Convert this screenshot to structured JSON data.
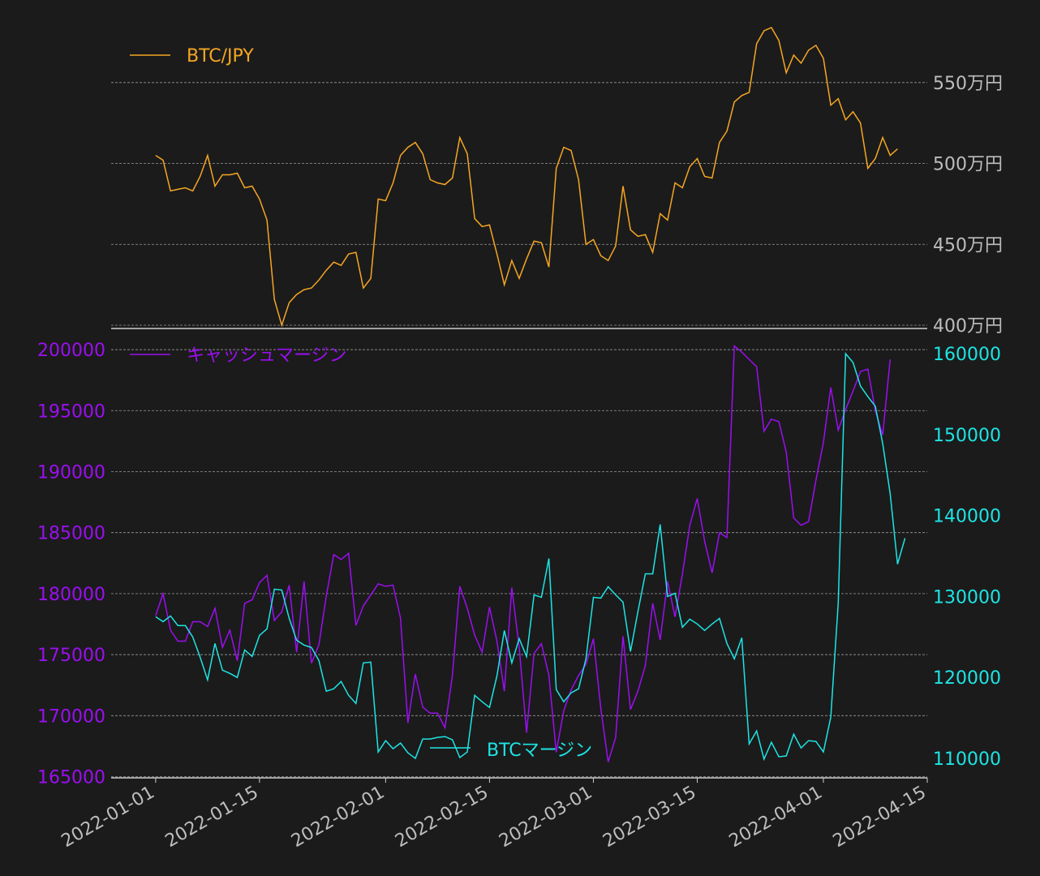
{
  "colors": {
    "background": "#1b1b1b",
    "btc_jpy": "#f5a623",
    "cash_margin": "#9b0ff0",
    "btc_margin": "#1ee4e4",
    "tick_gray": "#bdbdbd"
  },
  "chart_data": [
    {
      "type": "line",
      "panel": "top",
      "x_start": "2022-01-01",
      "ylim": [
        3980000,
        5900000
      ],
      "yticks": [
        4000000,
        4500000,
        5000000,
        5500000
      ],
      "ytick_labels": [
        "400万円",
        "450万円",
        "500万円",
        "550万円"
      ],
      "grid": true,
      "legend_position": "top-left",
      "series": [
        {
          "name": "BTC/JPY",
          "color": "#f5a623",
          "values": [
            5050000,
            5020000,
            4830000,
            4840000,
            4850000,
            4830000,
            4920000,
            5050000,
            4860000,
            4930000,
            4930000,
            4940000,
            4850000,
            4860000,
            4780000,
            4650000,
            4160000,
            4000000,
            4140000,
            4190000,
            4220000,
            4230000,
            4280000,
            4340000,
            4390000,
            4370000,
            4440000,
            4450000,
            4230000,
            4290000,
            4780000,
            4770000,
            4880000,
            5050000,
            5100000,
            5130000,
            5060000,
            4900000,
            4880000,
            4870000,
            4910000,
            5160000,
            5060000,
            4660000,
            4610000,
            4620000,
            4440000,
            4250000,
            4400000,
            4290000,
            4410000,
            4520000,
            4510000,
            4360000,
            4970000,
            5100000,
            5080000,
            4900000,
            4500000,
            4530000,
            4430000,
            4400000,
            4490000,
            4860000,
            4590000,
            4550000,
            4560000,
            4450000,
            4690000,
            4650000,
            4880000,
            4850000,
            4980000,
            5030000,
            4920000,
            4910000,
            5130000,
            5200000,
            5380000,
            5420000,
            5440000,
            5740000,
            5820000,
            5840000,
            5760000,
            5560000,
            5670000,
            5620000,
            5700000,
            5730000,
            5650000,
            5360000,
            5400000,
            5270000,
            5320000,
            5250000,
            4970000,
            5030000,
            5160000,
            5050000,
            5090000
          ]
        }
      ]
    },
    {
      "type": "line",
      "panel": "bottom",
      "x_start": "2022-01-01",
      "ylim_left": [
        164900,
        201200
      ],
      "ylim_right": [
        107600,
        162300
      ],
      "yticks_left": [
        165000,
        170000,
        175000,
        180000,
        185000,
        190000,
        195000,
        200000
      ],
      "ytick_labels_left": [
        "165000",
        "170000",
        "175000",
        "180000",
        "185000",
        "190000",
        "195000",
        "200000"
      ],
      "yticks_right": [
        110000,
        120000,
        130000,
        140000,
        150000,
        160000
      ],
      "ytick_labels_right": [
        "110000",
        "120000",
        "130000",
        "140000",
        "150000",
        "160000"
      ],
      "xticks": [
        "2022-01-01",
        "2022-01-15",
        "2022-02-01",
        "2022-02-15",
        "2022-03-01",
        "2022-03-15",
        "2022-04-01",
        "2022-04-15"
      ],
      "xtick_labels": [
        "2022-01-01",
        "2022-01-15",
        "2022-02-01",
        "2022-02-15",
        "2022-03-01",
        "2022-03-15",
        "2022-04-01",
        "2022-04-15"
      ],
      "grid": true,
      "series": [
        {
          "name": "キャッシュマージン",
          "axis": "left",
          "color": "#9b0ff0",
          "legend_position": "top-left",
          "values": [
            178200,
            180000,
            177000,
            176100,
            176100,
            177700,
            177700,
            177300,
            178800,
            175600,
            177000,
            174500,
            179200,
            179500,
            180900,
            181500,
            177800,
            178500,
            180700,
            175200,
            181000,
            174300,
            175800,
            179800,
            183200,
            182800,
            183300,
            177400,
            179000,
            179900,
            180800,
            180600,
            180700,
            178000,
            169400,
            173400,
            170700,
            170200,
            170200,
            169000,
            173300,
            180600,
            178800,
            176600,
            175200,
            178900,
            176100,
            172000,
            180500,
            175600,
            168600,
            175100,
            175900,
            173300,
            167000,
            170400,
            172100,
            173300,
            174200,
            176300,
            170600,
            166200,
            168200,
            176500,
            170500,
            172000,
            174100,
            179200,
            176200,
            181000,
            178100,
            181600,
            185600,
            187800,
            184300,
            181700,
            185000,
            184600,
            200300,
            199800,
            199200,
            198600,
            193300,
            194300,
            194100,
            191600,
            186200,
            185600,
            185900,
            189300,
            192400,
            196900,
            193400,
            195100,
            196600,
            198200,
            198400,
            195000,
            193000,
            199200
          ]
        },
        {
          "name": "BTCマージン",
          "axis": "right",
          "color": "#1ee4e4",
          "legend_position": "bottom-center",
          "values": [
            127500,
            126900,
            127600,
            126400,
            126400,
            125000,
            122500,
            119700,
            124200,
            120900,
            120500,
            120000,
            123400,
            122600,
            125200,
            126000,
            130900,
            130800,
            127300,
            124600,
            124000,
            123700,
            122100,
            118300,
            118600,
            119500,
            117800,
            116800,
            121800,
            121900,
            110800,
            112200,
            111200,
            111900,
            110700,
            110000,
            112400,
            112400,
            112600,
            112700,
            112300,
            110100,
            110800,
            117800,
            117000,
            116300,
            120200,
            125800,
            121800,
            124800,
            122600,
            130200,
            129900,
            134700,
            118500,
            117000,
            118100,
            118600,
            122300,
            129900,
            129800,
            131200,
            130200,
            129300,
            123200,
            128100,
            132800,
            132800,
            138900,
            130000,
            130400,
            126200,
            127200,
            126600,
            125800,
            126600,
            127300,
            124200,
            122300,
            124900,
            111800,
            113400,
            109900,
            112000,
            110200,
            110300,
            113000,
            111300,
            112200,
            112100,
            110800,
            115100,
            129200,
            160000,
            158900,
            156000,
            154700,
            153500,
            148900,
            142700,
            134000,
            137200
          ]
        }
      ]
    }
  ]
}
